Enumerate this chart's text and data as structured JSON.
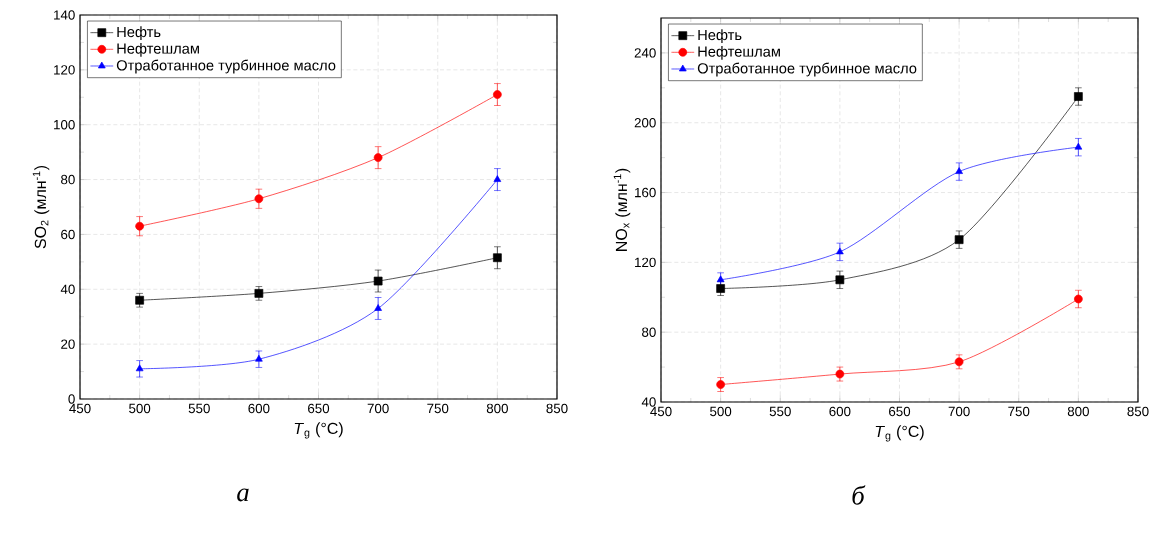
{
  "chart_data": [
    {
      "type": "line",
      "xlabel": "*T*$_{g}$ (°C)",
      "ylabel": "SO$_{2}$ (млн$^{-1}$)",
      "annotations": [
        "а"
      ],
      "x": [
        500,
        600,
        700,
        800
      ],
      "xlim": [
        450,
        850
      ],
      "xticks": [
        450,
        500,
        550,
        600,
        650,
        700,
        750,
        800,
        850
      ],
      "ylim": [
        0,
        140
      ],
      "yticks": [
        0,
        20,
        40,
        60,
        80,
        100,
        120,
        140
      ],
      "grid": true,
      "legend": "top left",
      "series": [
        {
          "name": "Нефть",
          "color": "#000000",
          "marker": "square",
          "values": [
            36,
            38.5,
            43,
            51.5
          ],
          "errors": [
            2.5,
            2.5,
            4,
            4
          ]
        },
        {
          "name": "Нефтешлам",
          "color": "#ff0000",
          "marker": "circle",
          "values": [
            63,
            73,
            88,
            111
          ],
          "errors": [
            3.5,
            3.5,
            4,
            4
          ]
        },
        {
          "name": "Отработанное турбинное масло",
          "color": "#0000ff",
          "marker": "triangle",
          "values": [
            11,
            14.5,
            33,
            80
          ],
          "errors": [
            3,
            3,
            4,
            4
          ]
        }
      ]
    },
    {
      "type": "line",
      "xlabel": "*T*$_{g}$ (°C)",
      "ylabel": "NO$_{x}$ (млн$^{-1}$)",
      "annotations": [
        "б"
      ],
      "x": [
        500,
        600,
        700,
        800
      ],
      "xlim": [
        450,
        850
      ],
      "xticks": [
        450,
        500,
        550,
        600,
        650,
        700,
        750,
        800,
        850
      ],
      "ylim": [
        40,
        260
      ],
      "yticks": [
        40,
        80,
        120,
        160,
        200,
        240
      ],
      "grid": true,
      "legend": "top left",
      "series": [
        {
          "name": "Нефть",
          "color": "#000000",
          "marker": "square",
          "values": [
            105,
            110,
            133,
            215
          ],
          "errors": [
            4,
            5,
            5,
            5
          ]
        },
        {
          "name": "Нефтешлам",
          "color": "#ff0000",
          "marker": "circle",
          "values": [
            50,
            56,
            63,
            99
          ],
          "errors": [
            4,
            4,
            4,
            5
          ]
        },
        {
          "name": "Отработанное турбинное масло",
          "color": "#0000ff",
          "marker": "triangle",
          "values": [
            110,
            126,
            172,
            186
          ],
          "errors": [
            4,
            5,
            5,
            5
          ]
        }
      ]
    }
  ]
}
